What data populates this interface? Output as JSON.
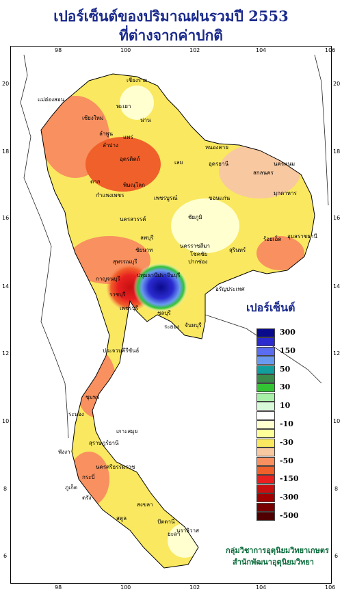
{
  "title_line1": "เปอร์เซ็นต์ของปริมาณฝนรวมปี 2553",
  "title_line2": "ที่ต่างจากค่าปกติ",
  "legend": {
    "title": "เปอร์เซ็นต์",
    "items": [
      {
        "color": "#0a0a8c",
        "label": "300"
      },
      {
        "color": "#2b2bd0",
        "label": ""
      },
      {
        "color": "#5a6cf0",
        "label": "150"
      },
      {
        "color": "#6a9af0",
        "label": ""
      },
      {
        "color": "#139e9e",
        "label": "50"
      },
      {
        "color": "#3a8a4a",
        "label": ""
      },
      {
        "color": "#33c433",
        "label": "30"
      },
      {
        "color": "#a8f0a8",
        "label": ""
      },
      {
        "color": "#d8fad8",
        "label": "10"
      },
      {
        "color": "#ffffff",
        "label": ""
      },
      {
        "color": "#ffffd0",
        "label": "-10"
      },
      {
        "color": "#ffff9a",
        "label": ""
      },
      {
        "color": "#f9e860",
        "label": "-30"
      },
      {
        "color": "#f8c8a0",
        "label": ""
      },
      {
        "color": "#f89060",
        "label": "-50"
      },
      {
        "color": "#f0602a",
        "label": ""
      },
      {
        "color": "#e82020",
        "label": "-150"
      },
      {
        "color": "#c81010",
        "label": ""
      },
      {
        "color": "#a00000",
        "label": "-300"
      },
      {
        "color": "#780000",
        "label": ""
      },
      {
        "color": "#500000",
        "label": "-500"
      }
    ]
  },
  "axes": {
    "lon_ticks": [
      "98",
      "100",
      "102",
      "104",
      "106"
    ],
    "lat_ticks": [
      "20",
      "18",
      "16",
      "14",
      "12",
      "10",
      "8",
      "6"
    ]
  },
  "provinces": [
    {
      "name": "เชียงราย"
    },
    {
      "name": "แม่ฮ่องสอน"
    },
    {
      "name": "พะเยา"
    },
    {
      "name": "เชียงใหม่"
    },
    {
      "name": "ลำพูน"
    },
    {
      "name": "น่าน"
    },
    {
      "name": "ลำปาง"
    },
    {
      "name": "แพร่"
    },
    {
      "name": "อุตรดิตถ์"
    },
    {
      "name": "หนองคาย"
    },
    {
      "name": "อุดรธานี"
    },
    {
      "name": "สกลนคร"
    },
    {
      "name": "นครพนม"
    },
    {
      "name": "มุกดาหาร"
    },
    {
      "name": "เลย"
    },
    {
      "name": "ตาก"
    },
    {
      "name": "พิษณุโลก"
    },
    {
      "name": "กำแพงเพชร"
    },
    {
      "name": "เพชรบูรณ์"
    },
    {
      "name": "ขอนแก่น"
    },
    {
      "name": "นครสวรรค์"
    },
    {
      "name": "ชัยภูมิ"
    },
    {
      "name": "อุบลราชธานี"
    },
    {
      "name": "ร้อยเอ็ด"
    },
    {
      "name": "ลพบุรี"
    },
    {
      "name": "นครราชสีมา"
    },
    {
      "name": "สุรินทร์"
    },
    {
      "name": "โชคชัย"
    },
    {
      "name": "ชัยนาท"
    },
    {
      "name": "สุพรรณบุรี"
    },
    {
      "name": "กาญจนบุรี"
    },
    {
      "name": "ปทุมธานี"
    },
    {
      "name": "ปราจีนบุรี"
    },
    {
      "name": "อรัญประเทศ"
    },
    {
      "name": "ราชบุรี"
    },
    {
      "name": "ชลบุรี"
    },
    {
      "name": "ระยอง"
    },
    {
      "name": "จันทบุรี"
    },
    {
      "name": "เพชรบุรี"
    },
    {
      "name": "ประจวบคีรีขันธ์"
    },
    {
      "name": "ชุมพร"
    },
    {
      "name": "ระนอง"
    },
    {
      "name": "สุราษฎร์ธานี"
    },
    {
      "name": "เกาะสมุย"
    },
    {
      "name": "พังงา"
    },
    {
      "name": "นครศรีธรรมราช"
    },
    {
      "name": "กระบี่"
    },
    {
      "name": "ภูเก็ต"
    },
    {
      "name": "ตรัง"
    },
    {
      "name": "สงขลา"
    },
    {
      "name": "สตูล"
    },
    {
      "name": "ปัตตานี"
    },
    {
      "name": "ยะลา"
    },
    {
      "name": "นราธิวาส"
    },
    {
      "name": "ปากช่อง"
    }
  ],
  "credit_line1": "กลุ่มวิชาการอุตุนิยมวิทยาเกษตร",
  "credit_line2": "สำนักพัฒนาอุตุนิยมวิทยา"
}
